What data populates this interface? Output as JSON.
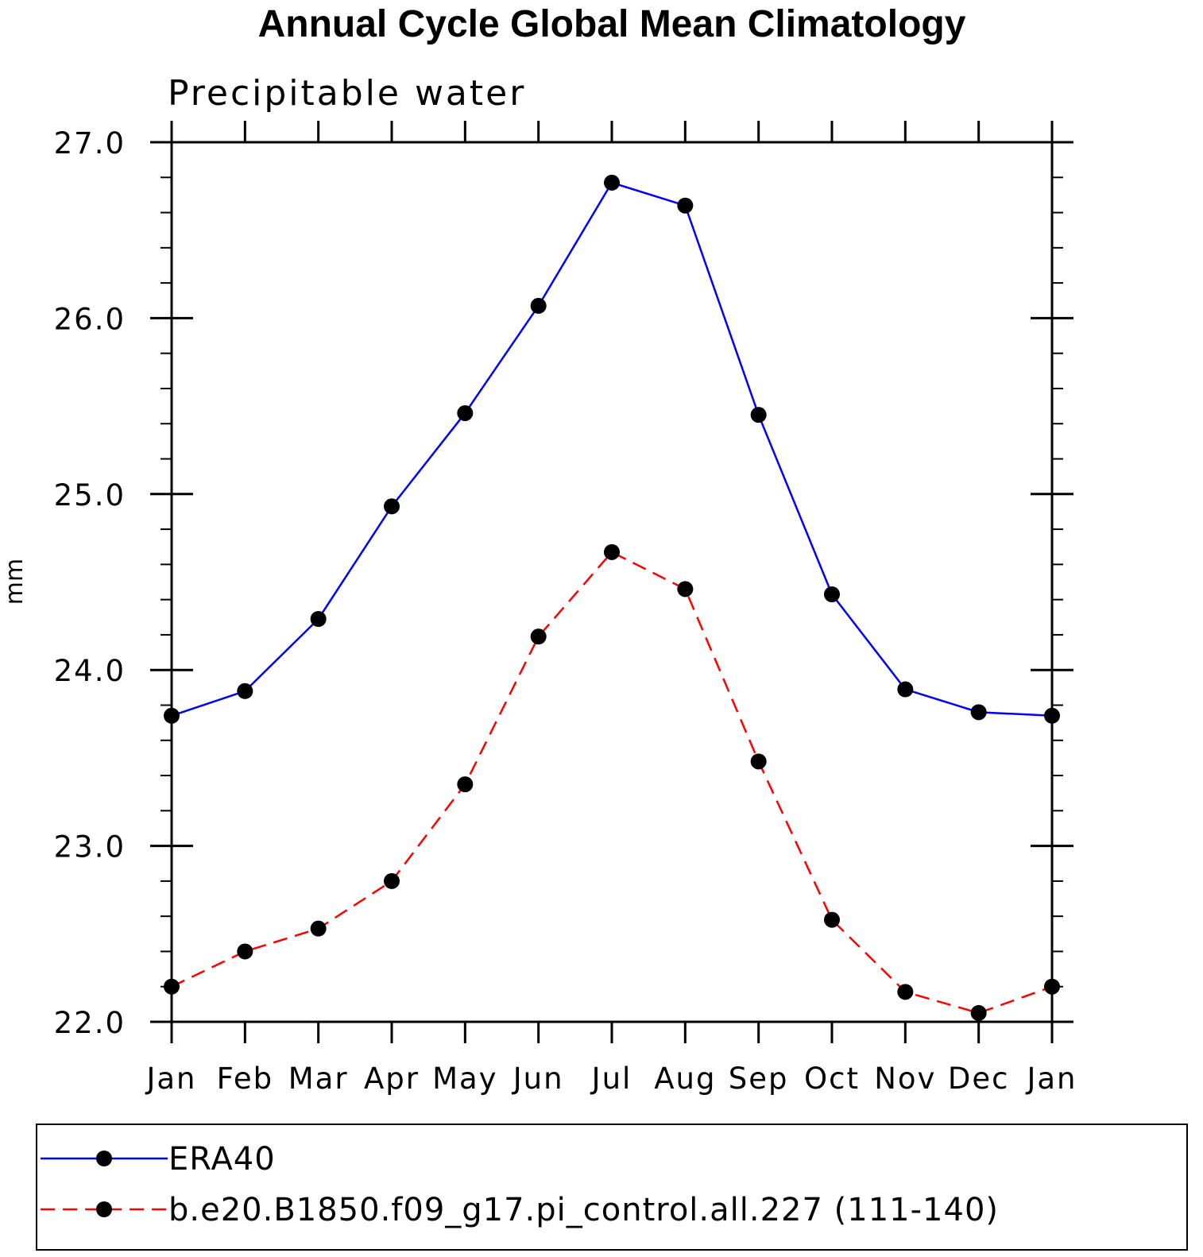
{
  "chart_data": {
    "type": "line",
    "title": "Annual Cycle Global Mean Climatology",
    "subtitle": "Precipitable water",
    "xlabel": "",
    "ylabel": "mm",
    "categories": [
      "Jan",
      "Feb",
      "Mar",
      "Apr",
      "May",
      "Jun",
      "Jul",
      "Aug",
      "Sep",
      "Oct",
      "Nov",
      "Dec",
      "Jan"
    ],
    "y_ticks": [
      "22.0",
      "23.0",
      "24.0",
      "25.0",
      "26.0",
      "27.0"
    ],
    "ylim": [
      22.0,
      27.0
    ],
    "grid": false,
    "legend_position": "bottom",
    "series": [
      {
        "name": "ERA40",
        "color": "#0000ff",
        "line_style": "solid",
        "marker": "filled-circle",
        "values": [
          23.74,
          23.88,
          24.29,
          24.93,
          25.46,
          26.07,
          26.77,
          26.64,
          25.45,
          24.43,
          23.89,
          23.76,
          23.74
        ]
      },
      {
        "name": "b.e20.B1850.f09_g17.pi_control.all.227 (111-140)",
        "color": "#ff0000",
        "line_style": "dashed",
        "marker": "filled-circle",
        "values": [
          22.2,
          22.4,
          22.53,
          22.8,
          23.35,
          24.19,
          24.67,
          24.46,
          23.48,
          22.58,
          22.17,
          22.05,
          22.2
        ]
      }
    ]
  }
}
